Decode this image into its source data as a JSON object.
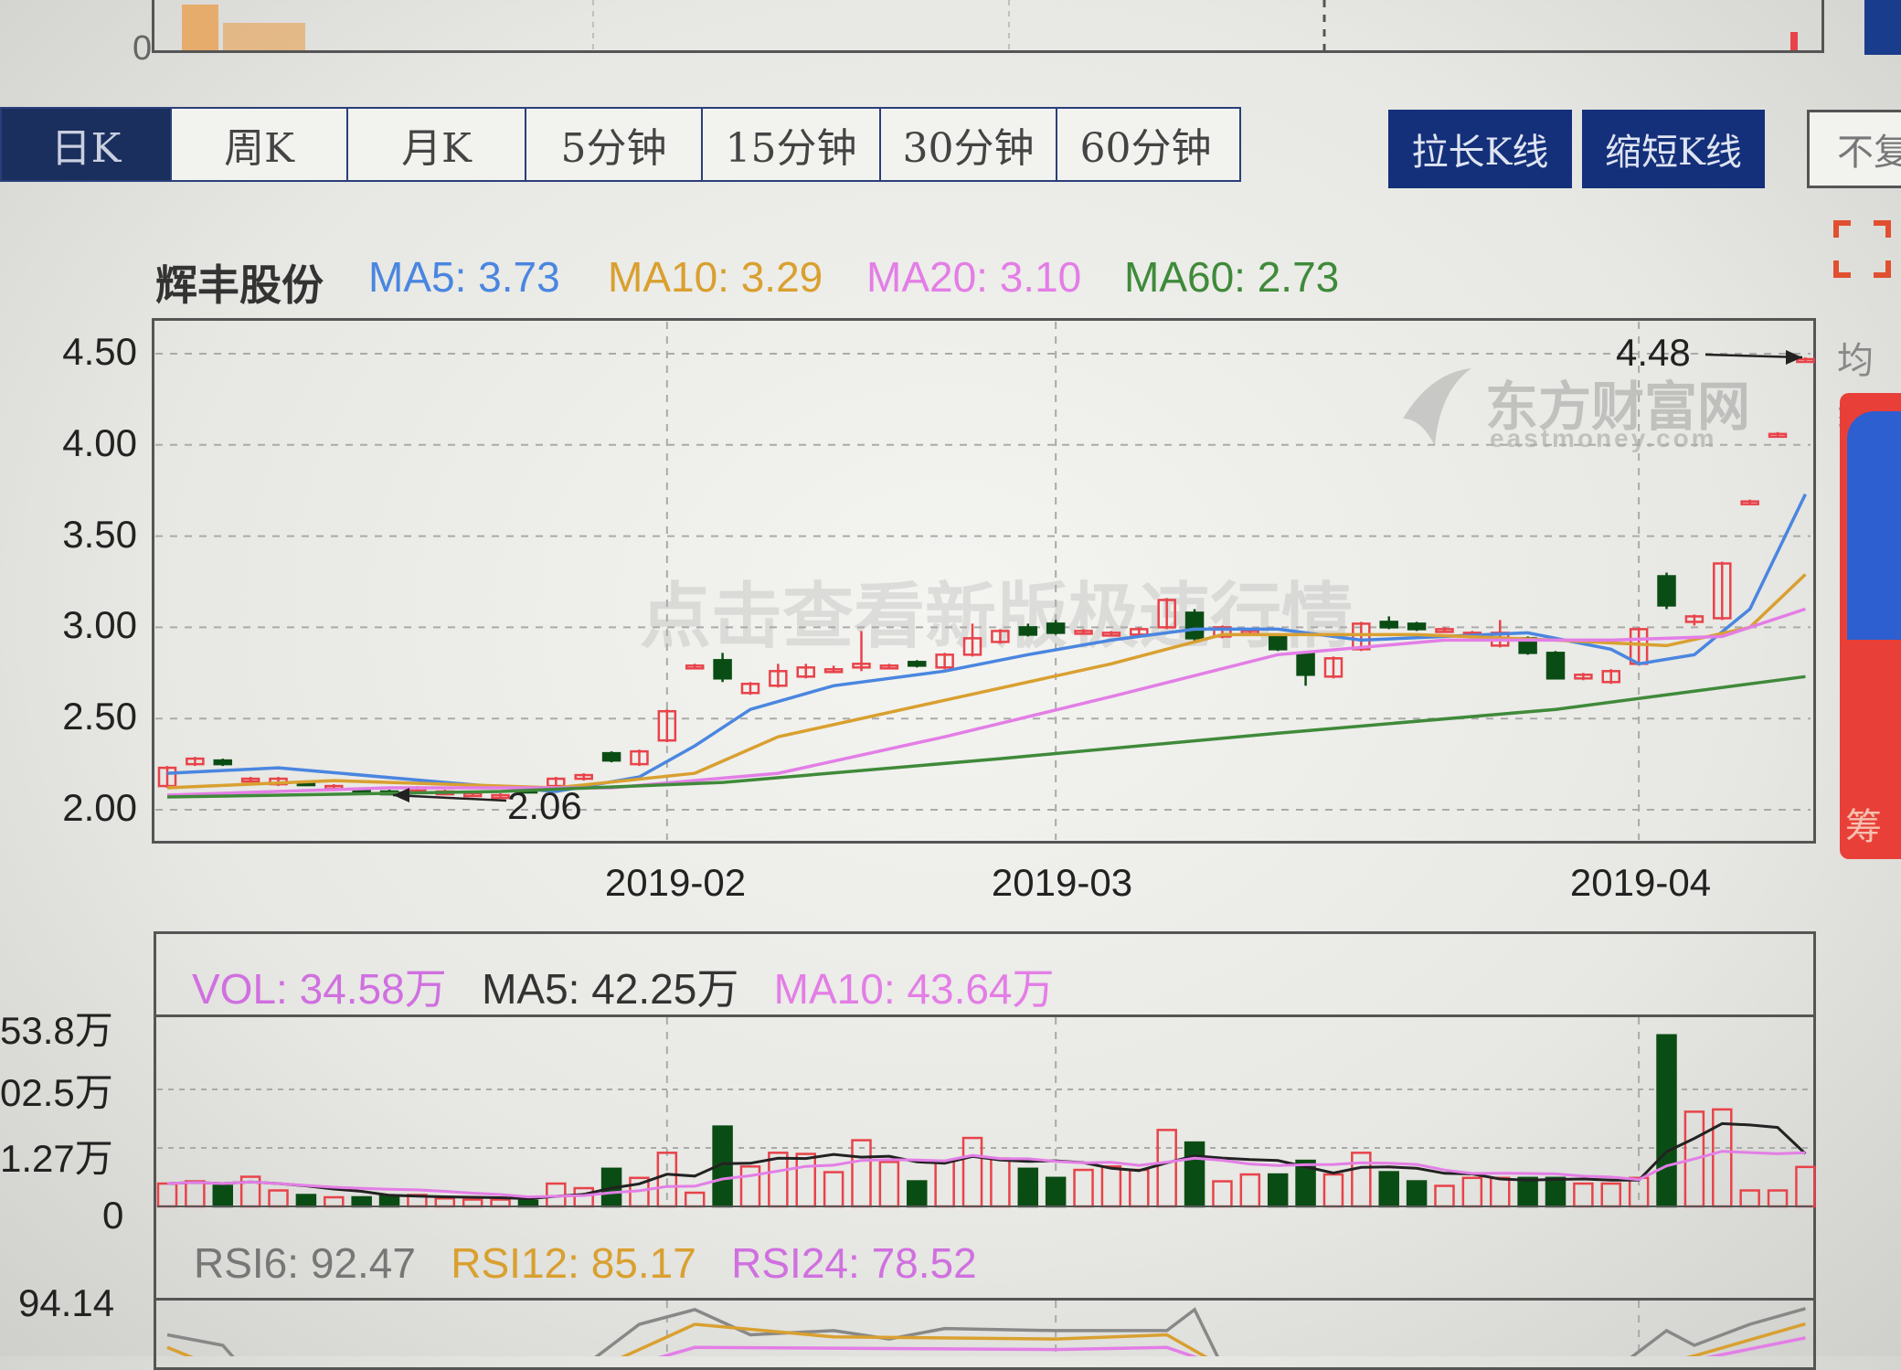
{
  "top_strip": {
    "zero_label": "0"
  },
  "tabs": [
    {
      "label": "日K",
      "active": true
    },
    {
      "label": "周K"
    },
    {
      "label": "月K"
    },
    {
      "label": "5分钟"
    },
    {
      "label": "15分钟"
    },
    {
      "label": "30分钟"
    },
    {
      "label": "60分钟"
    }
  ],
  "buttons": {
    "stretch": "拉长K线",
    "shrink": "缩短K线",
    "fq": "不复"
  },
  "legend": {
    "name": "辉丰股份",
    "ma5": "MA5: 3.73",
    "ma10": "MA10: 3.29",
    "ma20": "MA20: 3.10",
    "ma60": "MA60: 2.73"
  },
  "colors": {
    "up": "#e8434a",
    "down": "#0a4d14",
    "ma5": "#4a86e0",
    "ma10": "#d9a030",
    "ma20": "#e37ee6",
    "ma60": "#3f8a3a",
    "accent": "#14307a"
  },
  "watermark": {
    "logo_cn": "东方财富网",
    "logo_en": "eastmoney.com",
    "promo": "点击查看新版极速行情"
  },
  "side": {
    "ma_label": "均线",
    "chip_label": "筹"
  },
  "chart_data": [
    {
      "type": "candlestick",
      "yticks": [
        "4.50",
        "4.00",
        "3.50",
        "3.00",
        "2.50",
        "2.00"
      ],
      "ylim": [
        2.0,
        4.5
      ],
      "xticks": [
        {
          "label": "2019-02",
          "index": 18
        },
        {
          "label": "2019-03",
          "index": 32
        },
        {
          "label": "2019-04",
          "index": 53
        }
      ],
      "annotations": {
        "max": "4.48",
        "min": "2.06"
      },
      "candles": [
        [
          2.13,
          2.24,
          2.12,
          2.23
        ],
        [
          2.25,
          2.29,
          2.24,
          2.28
        ],
        [
          2.27,
          2.28,
          2.24,
          2.25
        ],
        [
          2.17,
          2.18,
          2.16,
          2.17
        ],
        [
          2.14,
          2.18,
          2.13,
          2.17
        ],
        [
          2.15,
          2.16,
          2.13,
          2.14
        ],
        [
          2.13,
          2.14,
          2.12,
          2.13
        ],
        [
          2.11,
          2.12,
          2.09,
          2.1
        ],
        [
          2.1,
          2.11,
          2.08,
          2.09
        ],
        [
          2.11,
          2.13,
          2.1,
          2.12
        ],
        [
          2.1,
          2.11,
          2.09,
          2.1
        ],
        [
          2.09,
          2.1,
          2.08,
          2.09
        ],
        [
          2.08,
          2.09,
          2.06,
          2.08
        ],
        [
          2.11,
          2.12,
          2.09,
          2.1
        ],
        [
          2.13,
          2.18,
          2.12,
          2.17
        ],
        [
          2.17,
          2.2,
          2.16,
          2.19
        ],
        [
          2.31,
          2.32,
          2.26,
          2.27
        ],
        [
          2.25,
          2.33,
          2.24,
          2.32
        ],
        [
          2.38,
          2.55,
          2.37,
          2.54
        ],
        [
          2.79,
          2.8,
          2.78,
          2.79
        ],
        [
          2.82,
          2.86,
          2.7,
          2.72
        ],
        [
          2.64,
          2.7,
          2.63,
          2.69
        ],
        [
          2.68,
          2.8,
          2.67,
          2.76
        ],
        [
          2.73,
          2.8,
          2.72,
          2.78
        ],
        [
          2.77,
          2.79,
          2.75,
          2.77
        ],
        [
          2.78,
          2.98,
          2.76,
          2.8
        ],
        [
          2.79,
          2.8,
          2.78,
          2.79
        ],
        [
          2.81,
          2.82,
          2.78,
          2.79
        ],
        [
          2.78,
          2.86,
          2.77,
          2.85
        ],
        [
          2.85,
          3.02,
          2.84,
          2.94
        ],
        [
          2.92,
          2.99,
          2.91,
          2.98
        ],
        [
          3.0,
          3.02,
          2.95,
          2.96
        ],
        [
          3.02,
          3.04,
          2.96,
          2.97
        ],
        [
          2.98,
          2.99,
          2.96,
          2.98
        ],
        [
          2.97,
          2.98,
          2.95,
          2.97
        ],
        [
          2.96,
          3.0,
          2.95,
          2.99
        ],
        [
          3.0,
          3.16,
          2.99,
          3.15
        ],
        [
          3.08,
          3.1,
          2.92,
          2.94
        ],
        [
          2.95,
          3.01,
          2.94,
          3.0
        ],
        [
          2.98,
          2.99,
          2.97,
          2.98
        ],
        [
          2.95,
          2.96,
          2.87,
          2.88
        ],
        [
          2.86,
          2.87,
          2.68,
          2.74
        ],
        [
          2.73,
          2.84,
          2.72,
          2.83
        ],
        [
          2.88,
          3.03,
          2.87,
          3.02
        ],
        [
          3.03,
          3.06,
          2.99,
          3.0
        ],
        [
          3.02,
          3.03,
          2.98,
          2.99
        ],
        [
          2.99,
          3.0,
          2.98,
          2.99
        ],
        [
          2.97,
          2.98,
          2.96,
          2.97
        ],
        [
          2.9,
          3.04,
          2.89,
          2.97
        ],
        [
          2.94,
          2.95,
          2.85,
          2.86
        ],
        [
          2.86,
          2.87,
          2.72,
          2.72
        ],
        [
          2.72,
          2.75,
          2.71,
          2.74
        ],
        [
          2.7,
          2.77,
          2.69,
          2.76
        ],
        [
          2.8,
          3.0,
          2.79,
          2.99
        ],
        [
          3.28,
          3.3,
          3.1,
          3.12
        ],
        [
          3.03,
          3.07,
          3.01,
          3.06
        ],
        [
          3.05,
          3.36,
          3.04,
          3.35
        ],
        [
          3.69,
          3.7,
          3.68,
          3.69
        ],
        [
          4.06,
          4.07,
          4.05,
          4.06
        ],
        [
          4.47,
          4.48,
          4.46,
          4.47
        ]
      ],
      "ma": [
        {
          "name": "MA5",
          "color": "#4a86e0",
          "points": [
            [
              0,
              2.2
            ],
            [
              4,
              2.23
            ],
            [
              10,
              2.15
            ],
            [
              14,
              2.1
            ],
            [
              17,
              2.18
            ],
            [
              19,
              2.35
            ],
            [
              21,
              2.55
            ],
            [
              24,
              2.68
            ],
            [
              28,
              2.76
            ],
            [
              31,
              2.85
            ],
            [
              34,
              2.93
            ],
            [
              37,
              2.99
            ],
            [
              40,
              2.99
            ],
            [
              43,
              2.93
            ],
            [
              46,
              2.95
            ],
            [
              49,
              2.97
            ],
            [
              52,
              2.88
            ],
            [
              53,
              2.8
            ],
            [
              55,
              2.85
            ],
            [
              57,
              3.1
            ],
            [
              59,
              3.73
            ]
          ]
        },
        {
          "name": "MA10",
          "color": "#d9a030",
          "points": [
            [
              0,
              2.12
            ],
            [
              6,
              2.16
            ],
            [
              14,
              2.12
            ],
            [
              19,
              2.2
            ],
            [
              22,
              2.4
            ],
            [
              28,
              2.6
            ],
            [
              34,
              2.8
            ],
            [
              38,
              2.96
            ],
            [
              45,
              2.96
            ],
            [
              50,
              2.93
            ],
            [
              54,
              2.9
            ],
            [
              57,
              3.0
            ],
            [
              59,
              3.29
            ]
          ]
        },
        {
          "name": "MA20",
          "color": "#e37ee6",
          "points": [
            [
              0,
              2.08
            ],
            [
              8,
              2.12
            ],
            [
              16,
              2.12
            ],
            [
              22,
              2.2
            ],
            [
              28,
              2.4
            ],
            [
              34,
              2.62
            ],
            [
              40,
              2.85
            ],
            [
              46,
              2.93
            ],
            [
              52,
              2.93
            ],
            [
              56,
              2.95
            ],
            [
              59,
              3.1
            ]
          ]
        },
        {
          "name": "MA60",
          "color": "#3f8a3a",
          "points": [
            [
              0,
              2.07
            ],
            [
              12,
              2.1
            ],
            [
              20,
              2.15
            ],
            [
              30,
              2.28
            ],
            [
              40,
              2.42
            ],
            [
              50,
              2.55
            ],
            [
              59,
              2.73
            ]
          ]
        }
      ]
    },
    {
      "type": "bar",
      "unit": "万",
      "header": {
        "vol": "VOL: 34.58万",
        "ma5": "MA5: 42.25万",
        "ma10": "MA10: 43.64万"
      },
      "yticks": [
        "53.8万",
        "02.5万",
        "1.27万",
        "0"
      ],
      "ylim": [
        0,
        153.8
      ],
      "values": [
        20,
        22,
        18,
        26,
        14,
        10,
        8,
        8,
        9,
        10,
        7,
        6,
        6,
        5,
        20,
        16,
        33,
        25,
        47,
        12,
        70,
        35,
        47,
        46,
        30,
        58,
        39,
        22,
        40,
        60,
        42,
        33,
        25,
        32,
        35,
        32,
        67,
        56,
        22,
        28,
        28,
        40,
        28,
        47,
        30,
        22,
        18,
        25,
        25,
        25,
        25,
        20,
        20,
        25,
        150,
        83,
        85,
        14,
        14,
        34.58
      ]
    },
    {
      "type": "line",
      "header": {
        "rsi6": "RSI6: 92.47",
        "rsi12": "RSI12: 85.17",
        "rsi24": "RSI24: 78.52"
      },
      "ytick": "94.14",
      "series": [
        {
          "name": "RSI6",
          "color": "#888888",
          "points": [
            [
              0,
              80
            ],
            [
              2,
              75
            ],
            [
              3,
              60
            ],
            [
              14,
              55
            ],
            [
              17,
              85
            ],
            [
              19,
              92
            ],
            [
              21,
              80
            ],
            [
              24,
              82
            ],
            [
              26,
              78
            ],
            [
              28,
              83
            ],
            [
              32,
              82
            ],
            [
              36,
              82
            ],
            [
              37,
              92
            ],
            [
              38,
              65
            ],
            [
              45,
              60
            ],
            [
              52,
              62
            ],
            [
              54,
              82
            ],
            [
              55,
              75
            ],
            [
              57,
              85
            ],
            [
              59,
              92.47
            ]
          ]
        },
        {
          "name": "RSI12",
          "color": "#d9a030",
          "points": [
            [
              0,
              74
            ],
            [
              3,
              58
            ],
            [
              14,
              55
            ],
            [
              19,
              85
            ],
            [
              24,
              79
            ],
            [
              32,
              78
            ],
            [
              36,
              80
            ],
            [
              38,
              65
            ],
            [
              52,
              60
            ],
            [
              55,
              70
            ],
            [
              59,
              85.17
            ]
          ]
        },
        {
          "name": "RSI24",
          "color": "#e37ee6",
          "points": [
            [
              0,
              68
            ],
            [
              14,
              55
            ],
            [
              19,
              74
            ],
            [
              32,
              73
            ],
            [
              36,
              74
            ],
            [
              38,
              65
            ],
            [
              52,
              60
            ],
            [
              59,
              78.52
            ]
          ]
        }
      ]
    }
  ]
}
